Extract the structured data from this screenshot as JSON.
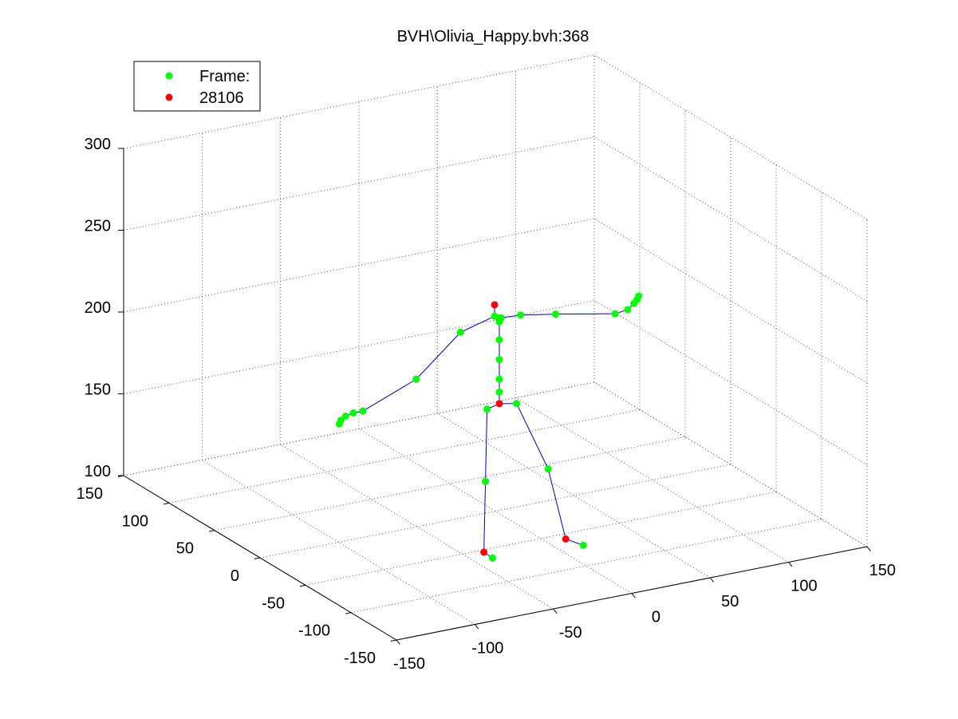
{
  "chart_data": {
    "type": "scatter",
    "title": "BVH\\Olivia_Happy.bvh:368",
    "xlabel": "",
    "ylabel": "",
    "zlabel": "",
    "grid": true,
    "legend_position": "top-left",
    "legend": [
      {
        "label": "Frame:",
        "color": "#00ff00"
      },
      {
        "label": "28106",
        "color": "#ff0000"
      }
    ],
    "x_ticks": [
      -150,
      -100,
      -50,
      0,
      50,
      100,
      150
    ],
    "y_ticks": [
      -150,
      -100,
      -50,
      0,
      50,
      100,
      150
    ],
    "z_ticks": [
      100,
      150,
      200,
      250,
      300
    ],
    "xlim": [
      -150,
      150
    ],
    "ylim": [
      -150,
      150
    ],
    "zlim": [
      100,
      300
    ],
    "colors": {
      "joint": "#00ff00",
      "highlight": "#ff0000",
      "bone": "#0000cc",
      "axis": "#000000"
    },
    "joints": [
      {
        "name": "head",
        "x": -8,
        "y": -13,
        "z": 232,
        "group": "highlight"
      },
      {
        "name": "neck",
        "x": -8,
        "y": -13,
        "z": 225,
        "group": "joint"
      },
      {
        "name": "neck2",
        "x": -5,
        "y": -15,
        "z": 224,
        "group": "joint"
      },
      {
        "name": "neck3",
        "x": -3,
        "y": -10,
        "z": 222,
        "group": "joint"
      },
      {
        "name": "spine4",
        "x": -5,
        "y": -13,
        "z": 221,
        "group": "joint"
      },
      {
        "name": "spine3",
        "x": -5,
        "y": -13,
        "z": 210,
        "group": "joint"
      },
      {
        "name": "spine2",
        "x": -5,
        "y": -13,
        "z": 198,
        "group": "joint"
      },
      {
        "name": "spine1",
        "x": -5,
        "y": -13,
        "z": 186,
        "group": "joint"
      },
      {
        "name": "hip-top",
        "x": -5,
        "y": -13,
        "z": 178,
        "group": "joint"
      },
      {
        "name": "hips",
        "x": -5,
        "y": -13,
        "z": 171,
        "group": "highlight"
      },
      {
        "name": "r-hip",
        "x": -14,
        "y": -15,
        "z": 170,
        "group": "joint"
      },
      {
        "name": "r-knee",
        "x": -15,
        "y": -15,
        "z": 126,
        "group": "joint"
      },
      {
        "name": "r-ankle",
        "x": -16,
        "y": -15,
        "z": 83,
        "group": "highlight"
      },
      {
        "name": "r-toe",
        "x": -14,
        "y": -21,
        "z": 81,
        "group": "joint"
      },
      {
        "name": "l-hip",
        "x": 6,
        "y": -13,
        "z": 169,
        "group": "joint"
      },
      {
        "name": "l-knee",
        "x": 25,
        "y": -15,
        "z": 126,
        "group": "joint"
      },
      {
        "name": "l-ankle",
        "x": 35,
        "y": -17,
        "z": 82,
        "group": "highlight"
      },
      {
        "name": "l-toe",
        "x": 41,
        "y": -26,
        "z": 80,
        "group": "joint"
      },
      {
        "name": "r-shoulder",
        "x": -28,
        "y": -10,
        "z": 218,
        "group": "joint"
      },
      {
        "name": "r-elbow",
        "x": -58,
        "y": -13,
        "z": 196,
        "group": "joint"
      },
      {
        "name": "r-wrist",
        "x": -92,
        "y": -13,
        "z": 183,
        "group": "joint"
      },
      {
        "name": "r-hand-1",
        "x": -98,
        "y": -13,
        "z": 183,
        "group": "joint"
      },
      {
        "name": "r-hand-2",
        "x": -103,
        "y": -13,
        "z": 182,
        "group": "joint"
      },
      {
        "name": "r-hand-3",
        "x": -106,
        "y": -13,
        "z": 180,
        "group": "joint"
      },
      {
        "name": "r-hand-4",
        "x": -107,
        "y": -13,
        "z": 178,
        "group": "joint"
      },
      {
        "name": "l-shoulder",
        "x": 8,
        "y": -14,
        "z": 223,
        "group": "joint"
      },
      {
        "name": "l-elbow",
        "x": 32,
        "y": -11,
        "z": 218,
        "group": "joint"
      },
      {
        "name": "l-wrist",
        "x": 70,
        "y": -11,
        "z": 211,
        "group": "joint"
      },
      {
        "name": "l-hand-1",
        "x": 78,
        "y": -11,
        "z": 212,
        "group": "joint"
      },
      {
        "name": "l-hand-2",
        "x": 82,
        "y": -11,
        "z": 215,
        "group": "joint"
      },
      {
        "name": "l-hand-3",
        "x": 84,
        "y": -11,
        "z": 217,
        "group": "joint"
      },
      {
        "name": "l-hand-4",
        "x": 85,
        "y": -11,
        "z": 219,
        "group": "joint"
      }
    ],
    "bones": [
      [
        "head",
        "neck"
      ],
      [
        "neck",
        "neck2"
      ],
      [
        "neck2",
        "neck3"
      ],
      [
        "neck2",
        "spine4"
      ],
      [
        "spine4",
        "spine3"
      ],
      [
        "spine3",
        "spine2"
      ],
      [
        "spine2",
        "spine1"
      ],
      [
        "spine1",
        "hip-top"
      ],
      [
        "hip-top",
        "hips"
      ],
      [
        "hips",
        "r-hip"
      ],
      [
        "r-hip",
        "r-knee"
      ],
      [
        "r-knee",
        "r-ankle"
      ],
      [
        "r-ankle",
        "r-toe"
      ],
      [
        "hips",
        "l-hip"
      ],
      [
        "l-hip",
        "l-knee"
      ],
      [
        "l-knee",
        "l-ankle"
      ],
      [
        "l-ankle",
        "l-toe"
      ],
      [
        "neck",
        "r-shoulder"
      ],
      [
        "r-shoulder",
        "r-elbow"
      ],
      [
        "r-elbow",
        "r-wrist"
      ],
      [
        "r-wrist",
        "r-hand-1"
      ],
      [
        "r-hand-1",
        "r-hand-2"
      ],
      [
        "r-hand-2",
        "r-hand-3"
      ],
      [
        "r-hand-3",
        "r-hand-4"
      ],
      [
        "neck3",
        "l-shoulder"
      ],
      [
        "l-shoulder",
        "l-elbow"
      ],
      [
        "l-elbow",
        "l-wrist"
      ],
      [
        "l-wrist",
        "l-hand-1"
      ],
      [
        "l-hand-1",
        "l-hand-2"
      ],
      [
        "l-hand-2",
        "l-hand-3"
      ],
      [
        "l-hand-3",
        "l-hand-4"
      ]
    ]
  }
}
